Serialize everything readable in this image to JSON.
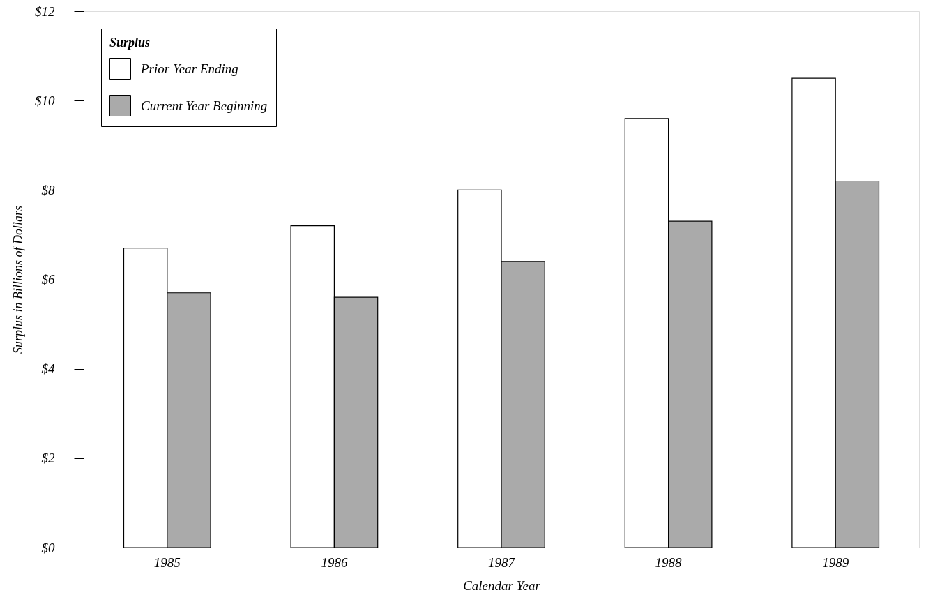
{
  "chart_data": {
    "type": "bar",
    "xlabel": "Calendar Year",
    "ylabel": "Surplus in Billions of Dollars",
    "legend_title": "Surplus",
    "categories": [
      "1985",
      "1986",
      "1987",
      "1988",
      "1989"
    ],
    "series": [
      {
        "name": "Prior Year Ending",
        "color": "#ffffff",
        "values": [
          6.7,
          7.2,
          8.0,
          9.6,
          10.5
        ]
      },
      {
        "name": "Current Year Beginning",
        "color": "#aaaaaa",
        "values": [
          5.7,
          5.6,
          6.4,
          7.3,
          8.2
        ]
      }
    ],
    "ylim": [
      0,
      12
    ],
    "yticks": [
      {
        "value": 0,
        "label": "$0"
      },
      {
        "value": 2,
        "label": "$2"
      },
      {
        "value": 4,
        "label": "$4"
      },
      {
        "value": 6,
        "label": "$6"
      },
      {
        "value": 8,
        "label": "$8"
      },
      {
        "value": 10,
        "label": "$10"
      },
      {
        "value": 12,
        "label": "$12"
      }
    ],
    "legend": "top left"
  }
}
